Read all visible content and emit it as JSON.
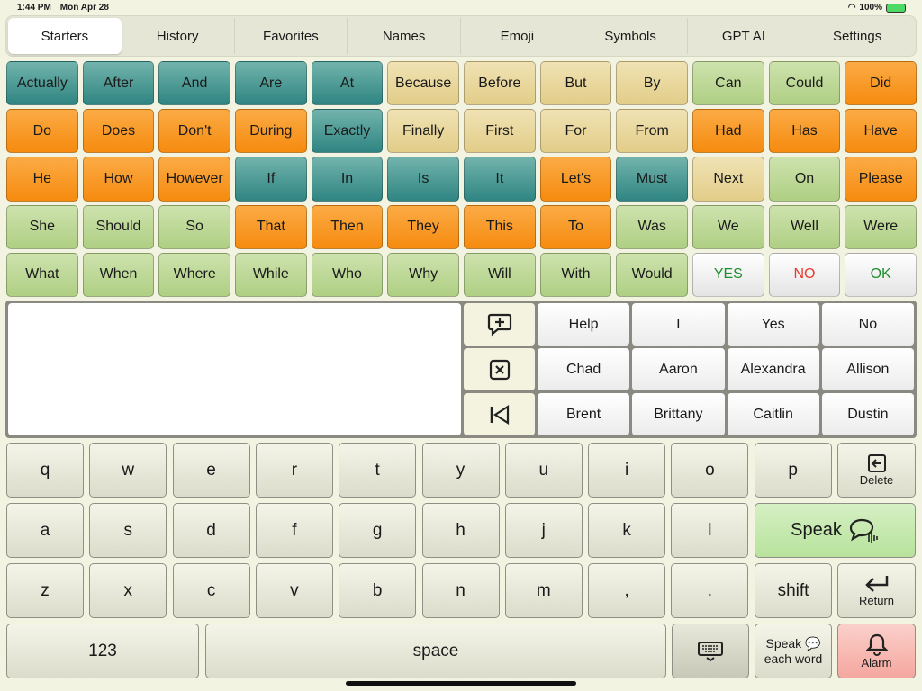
{
  "status": {
    "time": "1:44 PM",
    "date": "Mon Apr 28",
    "battery": "100%"
  },
  "tabs": [
    "Starters",
    "History",
    "Favorites",
    "Names",
    "Emoji",
    "Symbols",
    "GPT AI",
    "Settings"
  ],
  "active_tab": 0,
  "colors": {
    "teal": "#3a8f8b",
    "orange": "#f7941d",
    "tan": "#e8d49a",
    "green": "#b9d48e",
    "yes": "#1e8f2e",
    "no": "#e8392f",
    "ok": "#1e8f2e",
    "speak": "#c8eab0",
    "alarm": "#f6b3ad"
  },
  "words": [
    [
      "Actually",
      "teal"
    ],
    [
      "After",
      "teal"
    ],
    [
      "And",
      "teal"
    ],
    [
      "Are",
      "teal"
    ],
    [
      "At",
      "teal"
    ],
    [
      "Because",
      "tan"
    ],
    [
      "Before",
      "tan"
    ],
    [
      "But",
      "tan"
    ],
    [
      "By",
      "tan"
    ],
    [
      "Can",
      "green"
    ],
    [
      "Could",
      "green"
    ],
    [
      "Did",
      "orange"
    ],
    [
      "Do",
      "orange"
    ],
    [
      "Does",
      "orange"
    ],
    [
      "Don't",
      "orange"
    ],
    [
      "During",
      "orange"
    ],
    [
      "Exactly",
      "teal"
    ],
    [
      "Finally",
      "tan"
    ],
    [
      "First",
      "tan"
    ],
    [
      "For",
      "tan"
    ],
    [
      "From",
      "tan"
    ],
    [
      "Had",
      "orange"
    ],
    [
      "Has",
      "orange"
    ],
    [
      "Have",
      "orange"
    ],
    [
      "He",
      "orange"
    ],
    [
      "How",
      "orange"
    ],
    [
      "However",
      "orange"
    ],
    [
      "If",
      "teal"
    ],
    [
      "In",
      "teal"
    ],
    [
      "Is",
      "teal"
    ],
    [
      "It",
      "teal"
    ],
    [
      "Let's",
      "orange"
    ],
    [
      "Must",
      "teal"
    ],
    [
      "Next",
      "tan"
    ],
    [
      "On",
      "green"
    ],
    [
      "Please",
      "orange"
    ],
    [
      "She",
      "green"
    ],
    [
      "Should",
      "green"
    ],
    [
      "So",
      "green"
    ],
    [
      "That",
      "orange"
    ],
    [
      "Then",
      "orange"
    ],
    [
      "They",
      "orange"
    ],
    [
      "This",
      "orange"
    ],
    [
      "To",
      "orange"
    ],
    [
      "Was",
      "green"
    ],
    [
      "We",
      "green"
    ],
    [
      "Well",
      "green"
    ],
    [
      "Were",
      "green"
    ],
    [
      "What",
      "green"
    ],
    [
      "When",
      "green"
    ],
    [
      "Where",
      "green"
    ],
    [
      "While",
      "green"
    ],
    [
      "Who",
      "green"
    ],
    [
      "Why",
      "green"
    ],
    [
      "Will",
      "green"
    ],
    [
      "With",
      "green"
    ],
    [
      "Would",
      "green"
    ],
    [
      "YES",
      "white"
    ],
    [
      "NO",
      "white"
    ],
    [
      "OK",
      "white"
    ]
  ],
  "message_text": "",
  "controls": [
    "add-phrase-icon",
    "clear-icon",
    "back-to-start-icon"
  ],
  "phrases": [
    "Help",
    "I",
    "Yes",
    "No",
    "Chad",
    "Aaron",
    "Alexandra",
    "Allison",
    "Brent",
    "Brittany",
    "Caitlin",
    "Dustin"
  ],
  "keyboard": {
    "row1": [
      "q",
      "w",
      "e",
      "r",
      "t",
      "y",
      "u",
      "i",
      "o",
      "p"
    ],
    "row2": [
      "a",
      "s",
      "d",
      "f",
      "g",
      "h",
      "j",
      "k",
      "l"
    ],
    "row3": [
      "z",
      "x",
      "c",
      "v",
      "b",
      "n",
      "m",
      ",",
      "."
    ],
    "delete": "Delete",
    "speak": "Speak",
    "shift": "shift",
    "return": "Return",
    "numbers": "123",
    "space": "space",
    "speak_each_line1": "Speak",
    "speak_each_line2": "each word",
    "alarm": "Alarm"
  }
}
